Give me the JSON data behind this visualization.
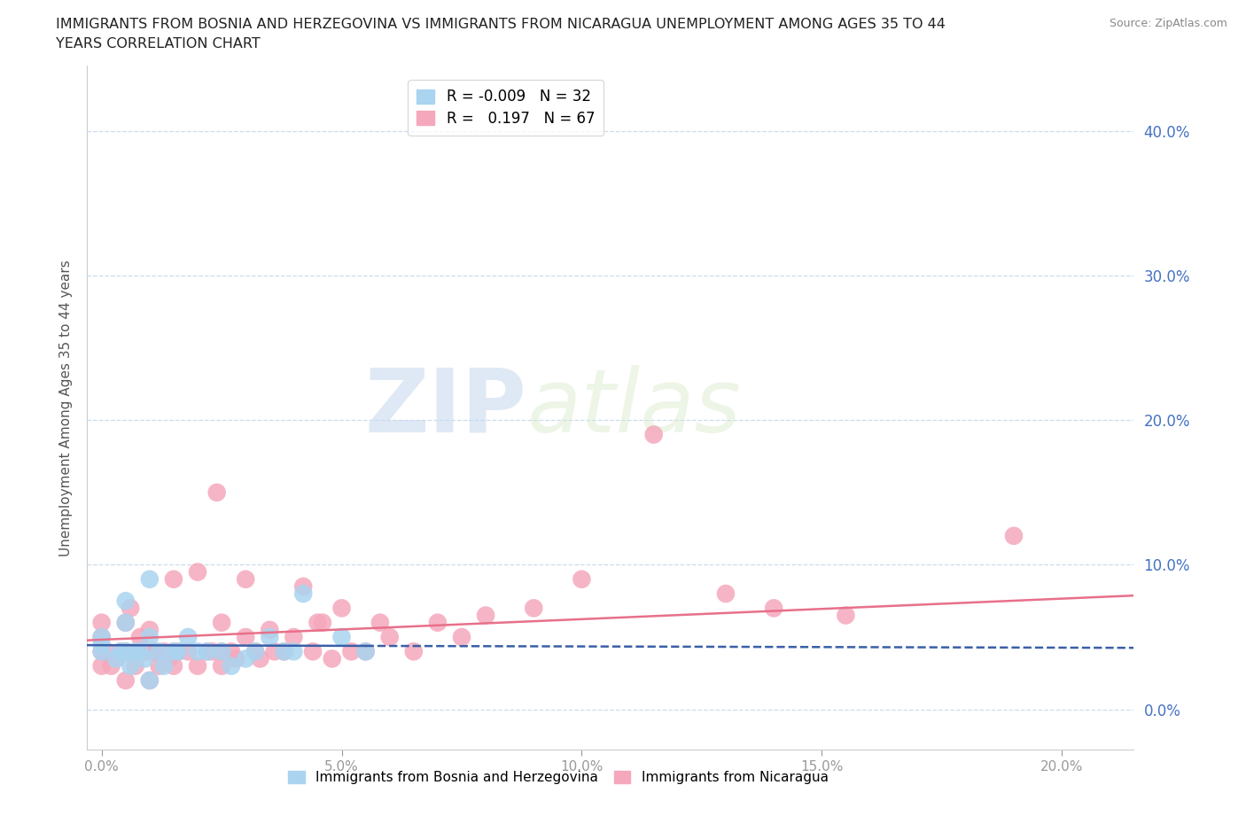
{
  "title_line1": "IMMIGRANTS FROM BOSNIA AND HERZEGOVINA VS IMMIGRANTS FROM NICARAGUA UNEMPLOYMENT AMONG AGES 35 TO 44",
  "title_line2": "YEARS CORRELATION CHART",
  "source": "Source: ZipAtlas.com",
  "xlabel_ticks": [
    0.0,
    0.05,
    0.1,
    0.15,
    0.2
  ],
  "ylabel_ticks": [
    0.0,
    0.1,
    0.2,
    0.3,
    0.4
  ],
  "xlim": [
    -0.003,
    0.215
  ],
  "ylim": [
    -0.028,
    0.445
  ],
  "bosnia_R": -0.009,
  "bosnia_N": 32,
  "nicaragua_R": 0.197,
  "nicaragua_N": 67,
  "bosnia_color": "#aad4f0",
  "nicaragua_color": "#f5a8bc",
  "bosnia_line_color": "#3a5fa8",
  "nicaragua_line_color": "#e8708a",
  "watermark_zip": "ZIP",
  "watermark_atlas": "atlas",
  "bosnia_x": [
    0.0,
    0.0,
    0.0,
    0.003,
    0.004,
    0.005,
    0.005,
    0.005,
    0.006,
    0.007,
    0.008,
    0.009,
    0.01,
    0.01,
    0.01,
    0.012,
    0.013,
    0.015,
    0.016,
    0.018,
    0.02,
    0.022,
    0.025,
    0.027,
    0.03,
    0.032,
    0.035,
    0.038,
    0.04,
    0.042,
    0.05,
    0.055
  ],
  "bosnia_y": [
    0.04,
    0.045,
    0.05,
    0.035,
    0.04,
    0.04,
    0.06,
    0.075,
    0.03,
    0.04,
    0.04,
    0.035,
    0.02,
    0.05,
    0.09,
    0.04,
    0.03,
    0.04,
    0.04,
    0.05,
    0.04,
    0.04,
    0.04,
    0.03,
    0.035,
    0.04,
    0.05,
    0.04,
    0.04,
    0.08,
    0.05,
    0.04
  ],
  "nicaragua_x": [
    0.0,
    0.0,
    0.0,
    0.0,
    0.001,
    0.002,
    0.003,
    0.004,
    0.005,
    0.005,
    0.005,
    0.006,
    0.007,
    0.008,
    0.008,
    0.009,
    0.01,
    0.01,
    0.01,
    0.011,
    0.012,
    0.013,
    0.014,
    0.015,
    0.015,
    0.015,
    0.016,
    0.018,
    0.02,
    0.02,
    0.022,
    0.023,
    0.024,
    0.025,
    0.025,
    0.025,
    0.027,
    0.028,
    0.03,
    0.03,
    0.032,
    0.033,
    0.035,
    0.036,
    0.038,
    0.04,
    0.042,
    0.044,
    0.045,
    0.046,
    0.048,
    0.05,
    0.052,
    0.055,
    0.058,
    0.06,
    0.065,
    0.07,
    0.075,
    0.08,
    0.09,
    0.1,
    0.115,
    0.13,
    0.14,
    0.155,
    0.19
  ],
  "nicaragua_y": [
    0.03,
    0.04,
    0.05,
    0.06,
    0.04,
    0.03,
    0.035,
    0.04,
    0.02,
    0.04,
    0.06,
    0.07,
    0.03,
    0.04,
    0.05,
    0.04,
    0.02,
    0.04,
    0.055,
    0.04,
    0.03,
    0.04,
    0.035,
    0.03,
    0.04,
    0.09,
    0.04,
    0.04,
    0.03,
    0.095,
    0.04,
    0.04,
    0.15,
    0.03,
    0.04,
    0.06,
    0.04,
    0.035,
    0.05,
    0.09,
    0.04,
    0.035,
    0.055,
    0.04,
    0.04,
    0.05,
    0.085,
    0.04,
    0.06,
    0.06,
    0.035,
    0.07,
    0.04,
    0.04,
    0.06,
    0.05,
    0.04,
    0.06,
    0.05,
    0.065,
    0.07,
    0.09,
    0.19,
    0.08,
    0.07,
    0.065,
    0.12
  ]
}
